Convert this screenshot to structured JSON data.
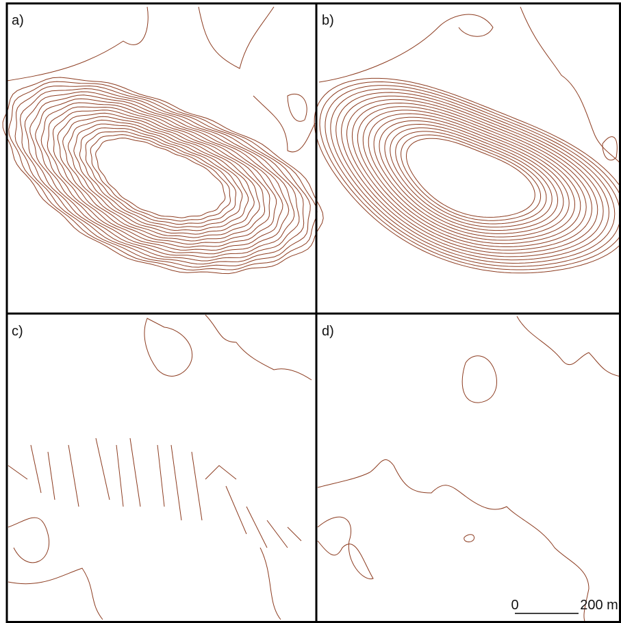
{
  "panels": {
    "a": {
      "label": "a)"
    },
    "b": {
      "label": "b)"
    },
    "c": {
      "label": "c)"
    },
    "d": {
      "label": "d)"
    }
  },
  "scale_bar": {
    "start_label": "0",
    "end_label": "200 m"
  }
}
